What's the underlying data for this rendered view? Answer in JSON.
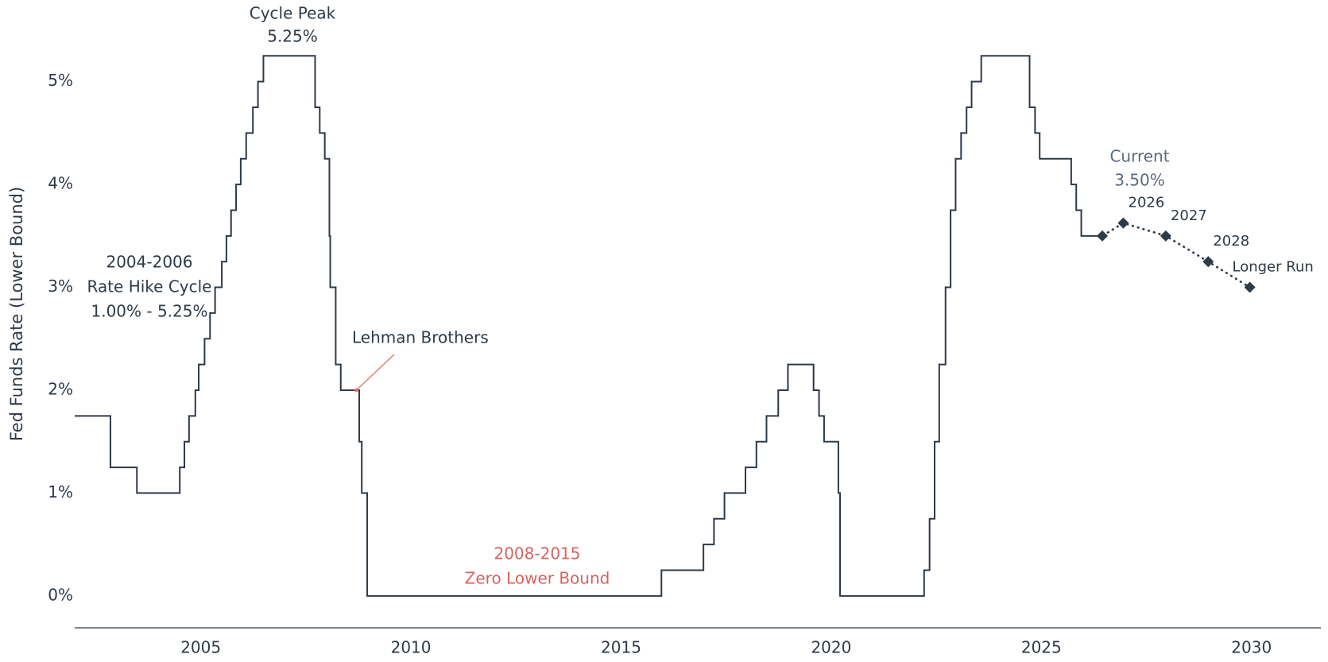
{
  "chart_data": {
    "type": "line",
    "ylabel": "Fed Funds Rate (Lower Bound)",
    "xlim": [
      2002,
      2031.65
    ],
    "ylim": [
      -0.31,
      5.6
    ],
    "xticks": [
      2005,
      2010,
      2015,
      2020,
      2025,
      2030
    ],
    "yticks": [
      {
        "value": 0,
        "label": "0%"
      },
      {
        "value": 1,
        "label": "1%"
      },
      {
        "value": 2,
        "label": "2%"
      },
      {
        "value": 3,
        "label": "3%"
      },
      {
        "value": 4,
        "label": "4%"
      },
      {
        "value": 5,
        "label": "5%"
      }
    ],
    "grid": false,
    "series": [
      {
        "name": "Fed Funds Rate",
        "color": "#2d3a48",
        "step": true,
        "x": [
          2002.0,
          2002.85,
          2003.48,
          2004.5,
          2004.61,
          2004.72,
          2004.87,
          2004.95,
          2005.09,
          2005.22,
          2005.34,
          2005.5,
          2005.61,
          2005.72,
          2005.84,
          2005.95,
          2006.08,
          2006.24,
          2006.36,
          2006.49,
          2007.72,
          2007.83,
          2007.95,
          2008.06,
          2008.08,
          2008.21,
          2008.33,
          2008.77,
          2008.83,
          2008.96,
          2015.96,
          2016.96,
          2017.21,
          2017.46,
          2017.96,
          2018.22,
          2018.46,
          2018.74,
          2018.97,
          2019.58,
          2019.71,
          2019.83,
          2020.17,
          2020.21,
          2022.21,
          2022.34,
          2022.46,
          2022.57,
          2022.72,
          2022.84,
          2022.96,
          2023.09,
          2023.22,
          2023.34,
          2023.57,
          2024.72,
          2024.85,
          2024.96,
          2025.71,
          2025.83,
          2025.95,
          2026.45
        ],
        "values": [
          1.75,
          1.25,
          1.0,
          1.25,
          1.5,
          1.75,
          2.0,
          2.25,
          2.5,
          2.75,
          3.0,
          3.25,
          3.5,
          3.75,
          4.0,
          4.25,
          4.5,
          4.75,
          5.0,
          5.25,
          4.75,
          4.5,
          4.25,
          3.5,
          3.0,
          2.25,
          2.0,
          1.5,
          1.0,
          0,
          0.25,
          0.5,
          0.75,
          1.0,
          1.25,
          1.5,
          1.75,
          2.0,
          2.25,
          2.0,
          1.75,
          1.5,
          1.0,
          0,
          0.25,
          0.75,
          1.5,
          2.25,
          3.0,
          3.75,
          4.25,
          4.5,
          4.75,
          5.0,
          5.25,
          4.75,
          4.5,
          4.25,
          4.0,
          3.75,
          3.5,
          3.5
        ]
      },
      {
        "name": "Projection",
        "color": "#2d3a48",
        "dotted": true,
        "markers": true,
        "x": [
          2026.45,
          2026.95,
          2027.96,
          2028.97,
          2029.96
        ],
        "values": [
          3.5,
          3.625,
          3.5,
          3.25,
          3.0
        ],
        "labels": [
          null,
          "2026",
          "2027",
          "2028",
          "Longer Run"
        ]
      }
    ],
    "annotations": [
      {
        "lines": [
          "Cycle Peak",
          "5.25%"
        ],
        "color": "#2d3a48"
      },
      {
        "lines": [
          "2004-2006",
          "Rate Hike Cycle",
          "1.00% - 5.25%"
        ],
        "color": "#2d3a48"
      },
      {
        "lines": [
          "Lehman Brothers"
        ],
        "color": "#2d3a48",
        "arrow_color": "#e07370",
        "x": 2008.7,
        "y": 2.0
      },
      {
        "lines": [
          "2008-2015",
          "Zero Lower Bound"
        ],
        "color": "#d9625f"
      },
      {
        "lines": [
          "Current",
          "3.50%"
        ],
        "color": "#5a6b80"
      }
    ]
  }
}
